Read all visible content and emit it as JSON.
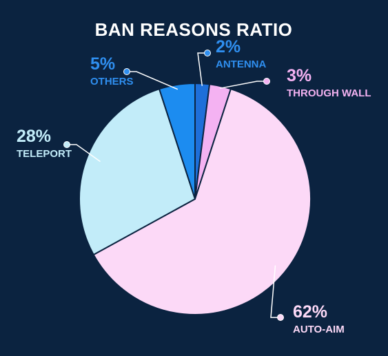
{
  "chart_data": {
    "type": "pie",
    "title": "BAN REASONS RATIO",
    "start_angle_deg": 0,
    "direction": "clockwise",
    "slice_outline_color": "#0b2340",
    "background_color": "#0b2340",
    "slices": [
      {
        "label": "ANTENNA",
        "value": 2,
        "value_label": "2%",
        "color": "#1e6fd9",
        "label_color": "#2f8ff0"
      },
      {
        "label": "THROUGH WALL",
        "value": 3,
        "value_label": "3%",
        "color": "#f4b2f2",
        "label_color": "#f4b2f2"
      },
      {
        "label": "AUTO-AIM",
        "value": 62,
        "value_label": "62%",
        "color": "#fcd9f7",
        "label_color": "#fcd9f7"
      },
      {
        "label": "TELEPORT",
        "value": 28,
        "value_label": "28%",
        "color": "#c2ecf9",
        "label_color": "#c2ecf9"
      },
      {
        "label": "OTHERS",
        "value": 5,
        "value_label": "5%",
        "color": "#1c8cf0",
        "label_color": "#2f8ff0"
      }
    ]
  }
}
